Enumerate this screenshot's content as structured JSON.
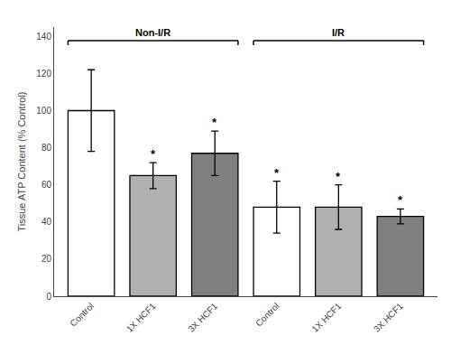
{
  "chart_data": {
    "type": "bar",
    "categories": [
      "Control",
      "1X HCF1",
      "3X HCF1",
      "Control",
      "1X HCF1",
      "3X HCF1"
    ],
    "values": [
      100,
      65,
      77,
      48,
      48,
      43
    ],
    "errors": [
      22,
      7,
      12,
      14,
      12,
      4
    ],
    "colors": [
      "white",
      "#b0b0b0",
      "#808080",
      "white",
      "#b0b0b0",
      "#808080"
    ],
    "edge_color": "black",
    "ylabel": "Tissue ATP Content (% Control)",
    "ylim": [
      0,
      145
    ],
    "yticks": [
      0,
      20,
      40,
      60,
      80,
      100,
      120,
      140
    ],
    "grid": false,
    "groups": [
      {
        "label": "Non-I/R",
        "size": 3
      },
      {
        "label": "I/R",
        "size": 3
      }
    ],
    "significant": [
      false,
      true,
      true,
      true,
      true,
      true
    ],
    "significance_label": "*"
  }
}
